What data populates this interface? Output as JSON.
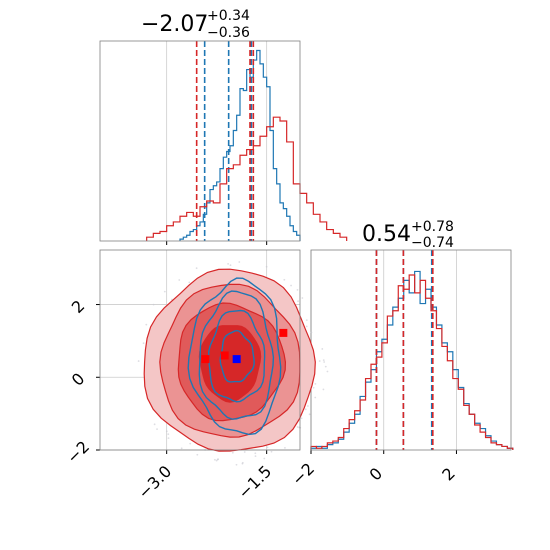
{
  "chart_data": [
    {
      "type": "histogram",
      "panel": "param-1-marginal",
      "title": {
        "value": "−2.07",
        "upper": "+0.34",
        "lower": "−0.36"
      },
      "xlim": [
        -4.0,
        -1.0
      ],
      "ylim": [
        0,
        1.05
      ],
      "grid": true,
      "series": [
        {
          "color": "#1f77b4",
          "bins_start": -2.8,
          "bin_width": 0.05,
          "values": [
            0.01,
            0.02,
            0.03,
            0.05,
            0.06,
            0.08,
            0.1,
            0.14,
            0.2,
            0.27,
            0.29,
            0.31,
            0.38,
            0.44,
            0.47,
            0.5,
            0.58,
            0.66,
            0.8,
            0.79,
            0.9,
            0.86,
            0.95,
            1.0,
            0.93,
            0.86,
            0.81,
            0.58,
            0.38,
            0.3,
            0.2,
            0.17,
            0.13,
            0.08,
            0.05,
            0.03
          ],
          "quantiles": [
            -2.43,
            -2.07,
            -1.73
          ]
        },
        {
          "color": "#d62728",
          "bins_start": -3.3,
          "bin_width": 0.1,
          "values": [
            0.02,
            0.04,
            0.05,
            0.08,
            0.1,
            0.13,
            0.15,
            0.13,
            0.18,
            0.21,
            0.2,
            0.3,
            0.38,
            0.4,
            0.45,
            0.48,
            0.5,
            0.55,
            0.6,
            0.65,
            0.63,
            0.52,
            0.3,
            0.25,
            0.2,
            0.14,
            0.1,
            0.06,
            0.04,
            0.02
          ],
          "quantiles": [
            -2.55,
            -1.75,
            -1.7
          ]
        }
      ]
    },
    {
      "type": "histogram",
      "panel": "param-2-marginal",
      "title": {
        "value": "0.54",
        "upper": "+0.78",
        "lower": "−0.74"
      },
      "xlim": [
        -2.0,
        3.5
      ],
      "ylim": [
        0,
        1.12
      ],
      "grid": true,
      "xticks": [
        "−2",
        "0",
        "2"
      ],
      "series": [
        {
          "color": "#1f77b4",
          "bins_start": -2.0,
          "bin_width": 0.15,
          "values": [
            0.01,
            0.02,
            0.01,
            0.03,
            0.04,
            0.06,
            0.1,
            0.15,
            0.2,
            0.3,
            0.38,
            0.45,
            0.55,
            0.62,
            0.7,
            0.8,
            0.85,
            0.95,
            0.88,
            1.0,
            0.82,
            0.9,
            0.8,
            0.7,
            0.6,
            0.55,
            0.45,
            0.35,
            0.26,
            0.2,
            0.15,
            0.12,
            0.08,
            0.05,
            0.03,
            0.02,
            0.01
          ],
          "quantiles": [
            -0.2,
            0.54,
            1.32
          ]
        },
        {
          "color": "#d62728",
          "bins_start": -2.0,
          "bin_width": 0.15,
          "values": [
            0.02,
            0.01,
            0.02,
            0.04,
            0.05,
            0.07,
            0.12,
            0.17,
            0.22,
            0.28,
            0.4,
            0.48,
            0.52,
            0.6,
            0.75,
            0.78,
            0.92,
            0.9,
            0.98,
            0.88,
            0.95,
            0.85,
            0.78,
            0.68,
            0.58,
            0.5,
            0.4,
            0.34,
            0.25,
            0.2,
            0.14,
            0.1,
            0.07,
            0.04,
            0.03,
            0.02,
            0.01
          ],
          "quantiles": [
            -0.2,
            0.54,
            1.35
          ]
        }
      ]
    },
    {
      "type": "contour-2d",
      "panel": "joint",
      "xlim": [
        -4.0,
        -1.0
      ],
      "ylim": [
        -2.0,
        3.5
      ],
      "grid": true,
      "xticks": [
        "−3.0",
        "−1.5"
      ],
      "yticks": [
        "−2",
        "0",
        "2"
      ],
      "series": [
        {
          "color": "#d62728",
          "center": [
            -2.05,
            0.42
          ],
          "levels": [
            {
              "rx": 0.45,
              "ry": 1.05
            },
            {
              "rx": 0.8,
              "ry": 1.6
            },
            {
              "rx": 1.05,
              "ry": 2.1
            },
            {
              "rx": 1.28,
              "ry": 2.5
            }
          ],
          "markers": [
            {
              "x": -2.42,
              "y": 0.5
            },
            {
              "x": -2.13,
              "y": 0.6
            },
            {
              "x": -1.25,
              "y": 1.22
            }
          ]
        },
        {
          "color": "#1f77b4",
          "center": [
            -1.95,
            0.55
          ],
          "levels": [
            {
              "rx": 0.25,
              "ry": 0.7
            },
            {
              "rx": 0.42,
              "ry": 1.25
            },
            {
              "rx": 0.55,
              "ry": 1.75
            },
            {
              "rx": 0.68,
              "ry": 2.1
            }
          ],
          "markers": [
            {
              "x": -1.95,
              "y": 0.5
            }
          ]
        }
      ]
    }
  ]
}
